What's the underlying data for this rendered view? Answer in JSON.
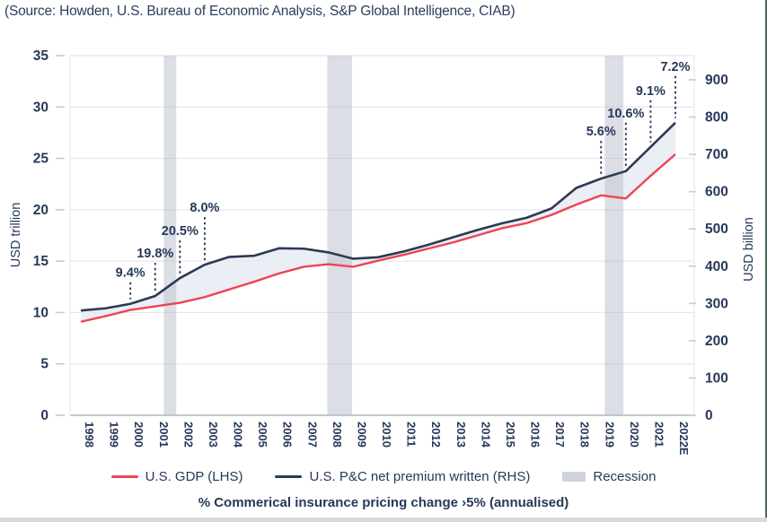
{
  "source_line": "(Source: Howden, U.S. Bureau of Economic Analysis, S&P Global Intelligence, CIAB)",
  "caption": "% Commerical insurance pricing change ›5% (annualised)",
  "legend": {
    "items": [
      {
        "label": "U.S. GDP (LHS)",
        "swatch": "line",
        "color": "#ef4356"
      },
      {
        "label": "U.S. P&C net premium written (RHS)",
        "swatch": "line",
        "color": "#2c3a54"
      },
      {
        "label": "Recession",
        "swatch": "rect",
        "color": "#cfd3db"
      }
    ]
  },
  "colors": {
    "text_navy": "#27395a",
    "gdp_line": "#ef4356",
    "npw_line": "#2c3a54",
    "between_fill": "rgba(232,235,242,0.85)",
    "recession_band": "rgba(175,181,196,0.45)",
    "gridline": "#e5e8ee",
    "zero_axis": "#b0b6c0",
    "tick": "#c7ccd5",
    "edge_right": "#4a6b58",
    "edge_bottom": "#d9d9d9"
  },
  "chart_data": {
    "type": "line",
    "title": "",
    "categories": [
      "1998",
      "1999",
      "2000",
      "2001",
      "2002",
      "2003",
      "2004",
      "2005",
      "2006",
      "2007",
      "2008",
      "2009",
      "2010",
      "2011",
      "2012",
      "2013",
      "2014",
      "2015",
      "2016",
      "2017",
      "2018",
      "2019",
      "2020",
      "2021",
      "2022E"
    ],
    "series": [
      {
        "name": "U.S. GDP (LHS)",
        "axis": "left",
        "color": "#ef4356",
        "values": [
          9.1,
          9.65,
          10.25,
          10.6,
          10.95,
          11.5,
          12.25,
          13.0,
          13.8,
          14.45,
          14.7,
          14.45,
          15.05,
          15.6,
          16.2,
          16.8,
          17.5,
          18.2,
          18.7,
          19.5,
          20.5,
          21.4,
          21.1,
          23.3,
          25.4
        ]
      },
      {
        "name": "U.S. P&C net premium written (RHS)",
        "axis": "right",
        "color": "#2c3a54",
        "values": [
          281,
          287,
          299,
          320,
          368,
          404,
          425,
          428,
          448,
          447,
          437,
          420,
          424,
          439,
          457,
          477,
          497,
          515,
          530,
          555,
          610,
          635,
          655,
          720,
          785
        ]
      }
    ],
    "left_axis": {
      "label": "USD trillion",
      "min": 0,
      "max": 35,
      "step": 5
    },
    "right_axis": {
      "label": "USD billion",
      "min": 0,
      "max": 900,
      "step": 100
    },
    "grid": true,
    "legend_position": "bottom",
    "recessions": [
      {
        "x_from": 2001.35,
        "x_to": 2001.85
      },
      {
        "x_from": 2007.95,
        "x_to": 2008.95
      },
      {
        "x_from": 2019.15,
        "x_to": 2019.9
      }
    ],
    "annotations": [
      {
        "category": "2000",
        "label": "9.4%",
        "offset": 30
      },
      {
        "category": "2001",
        "label": "19.8%",
        "offset": 43
      },
      {
        "category": "2002",
        "label": "20.5%",
        "offset": 48
      },
      {
        "category": "2003",
        "label": "8.0%",
        "offset": 59
      },
      {
        "category": "2019",
        "label": "5.6%",
        "offset": 48
      },
      {
        "category": "2020",
        "label": "10.6%",
        "offset": 60
      },
      {
        "category": "2021",
        "label": "9.1%",
        "offset": 58
      },
      {
        "category": "2022E",
        "label": "7.2%",
        "offset": 58
      }
    ]
  }
}
